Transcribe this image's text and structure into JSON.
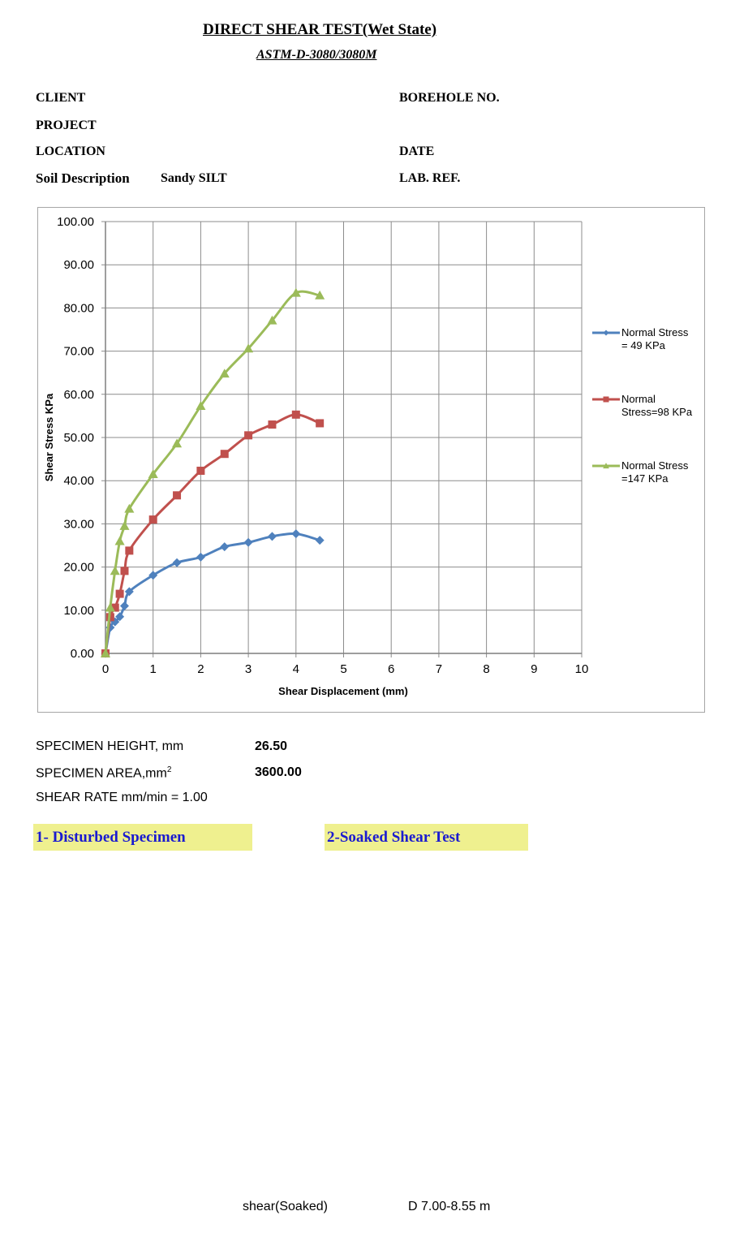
{
  "header": {
    "title": "DIRECT SHEAR TEST(Wet State)",
    "subtitle": "ASTM-D-3080/3080M"
  },
  "info": {
    "client_label": "CLIENT",
    "project_label": "PROJECT",
    "location_label": "LOCATION",
    "soil_description_label": "Soil Description",
    "soil_description_value": "Sandy SILT",
    "borehole_label": "BOREHOLE NO.",
    "date_label": "DATE",
    "lab_ref_label": "LAB. REF."
  },
  "chart_data": {
    "type": "line",
    "title": "",
    "xlabel": "Shear Displacement (mm)",
    "ylabel": "Shear Stress KPa",
    "xlim": [
      0,
      10
    ],
    "ylim": [
      0,
      100
    ],
    "x_ticks": [
      "0",
      "1",
      "2",
      "3",
      "4",
      "5",
      "6",
      "7",
      "8",
      "9",
      "10"
    ],
    "y_ticks": [
      "0.00",
      "10.00",
      "20.00",
      "30.00",
      "40.00",
      "50.00",
      "60.00",
      "70.00",
      "80.00",
      "90.00",
      "100.00"
    ],
    "grid": true,
    "legend_position": "right",
    "series": [
      {
        "name": "Normal Stress = 49 KPa",
        "legend_lines": [
          "Normal Stress",
          "= 49 KPa"
        ],
        "color": "#4f81bd",
        "marker": "diamond",
        "x": [
          0,
          0.1,
          0.2,
          0.3,
          0.4,
          0.5,
          1.0,
          1.5,
          2.0,
          2.5,
          3.0,
          3.5,
          4.0,
          4.5
        ],
        "y": [
          0,
          6.0,
          7.3,
          8.5,
          11.0,
          14.3,
          18.1,
          21.0,
          22.3,
          24.7,
          25.7,
          27.1,
          27.7,
          26.2
        ]
      },
      {
        "name": "Normal Stress=98 KPa",
        "legend_lines": [
          "Normal",
          "Stress=98 KPa"
        ],
        "color": "#c0504d",
        "marker": "square",
        "x": [
          0,
          0.1,
          0.2,
          0.3,
          0.4,
          0.5,
          1.0,
          1.5,
          2.0,
          2.5,
          3.0,
          3.5,
          4.0,
          4.5
        ],
        "y": [
          0,
          8.4,
          10.6,
          13.8,
          19.1,
          23.8,
          31.0,
          36.6,
          42.3,
          46.2,
          50.5,
          53.0,
          55.3,
          53.3
        ]
      },
      {
        "name": "Normal Stress =147 KPa",
        "legend_lines": [
          "Normal Stress",
          "=147 KPa"
        ],
        "color": "#9bbb59",
        "marker": "triangle",
        "x": [
          0,
          0.1,
          0.2,
          0.3,
          0.4,
          0.5,
          1.0,
          1.5,
          2.0,
          2.5,
          3.0,
          3.5,
          4.0,
          4.5
        ],
        "y": [
          0,
          10.6,
          19.1,
          26.0,
          29.5,
          33.5,
          41.5,
          48.6,
          57.3,
          64.8,
          70.6,
          77.1,
          83.5,
          82.9
        ]
      }
    ]
  },
  "specimen": {
    "height_label": "SPECIMEN  HEIGHT, mm",
    "height_value": "26.50",
    "area_label": "SPECIMEN  AREA,mm",
    "area_sup": "2",
    "area_value": "3600.00",
    "shear_rate_label": "SHEAR  RATE mm/min = 1.00"
  },
  "notes": {
    "disturbed": "1- Disturbed Specimen",
    "soaked": "2-Soaked Shear Test"
  },
  "footer": {
    "sheet_name": "shear(Soaked)",
    "depth": "D 7.00-8.55 m"
  }
}
